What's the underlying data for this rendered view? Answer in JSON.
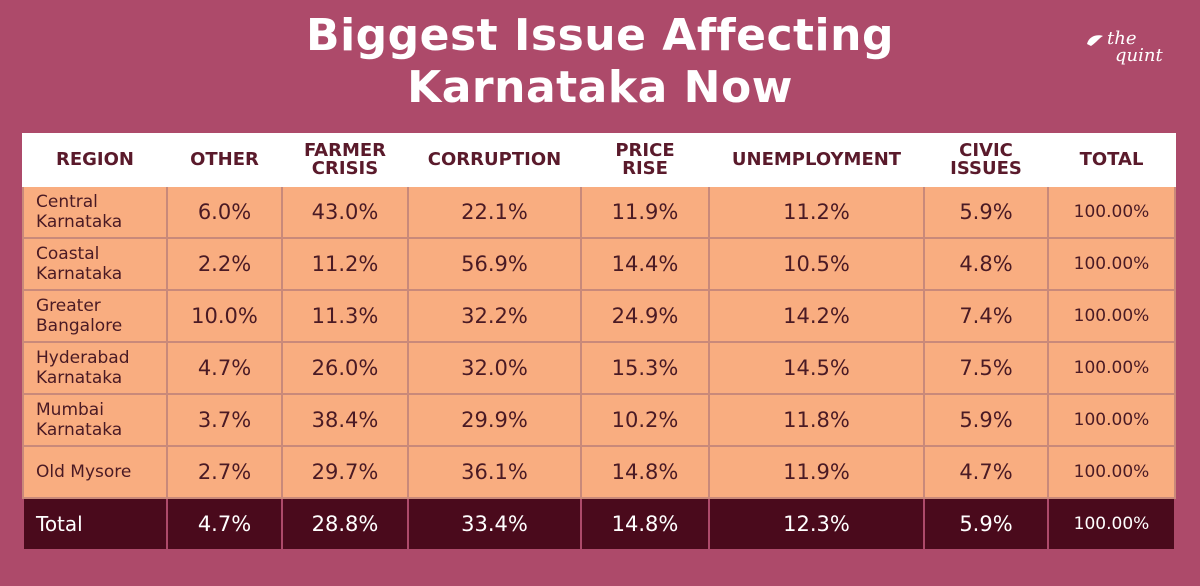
{
  "title": {
    "line1": "Biggest Issue Affecting",
    "line2": "Karnataka Now"
  },
  "logo": {
    "line1": "the",
    "line2": "quint"
  },
  "chart_data": {
    "type": "table",
    "title": "Biggest Issue Affecting Karnataka Now",
    "columns": [
      "REGION",
      "OTHER",
      "FARMER CRISIS",
      "CORRUPTION",
      "PRICE RISE",
      "UNEMPLOYMENT",
      "CIVIC ISSUES",
      "TOTAL"
    ],
    "rows": [
      [
        "Central Karnataka",
        "6.0%",
        "43.0%",
        "22.1%",
        "11.9%",
        "11.2%",
        "5.9%",
        "100.00%"
      ],
      [
        "Coastal Karnataka",
        "2.2%",
        "11.2%",
        "56.9%",
        "14.4%",
        "10.5%",
        "4.8%",
        "100.00%"
      ],
      [
        "Greater Bangalore",
        "10.0%",
        "11.3%",
        "32.2%",
        "24.9%",
        "14.2%",
        "7.4%",
        "100.00%"
      ],
      [
        "Hyderabad Karnataka",
        "4.7%",
        "26.0%",
        "32.0%",
        "15.3%",
        "14.5%",
        "7.5%",
        "100.00%"
      ],
      [
        "Mumbai Karnataka",
        "3.7%",
        "38.4%",
        "29.9%",
        "10.2%",
        "11.8%",
        "5.9%",
        "100.00%"
      ],
      [
        "Old Mysore",
        "2.7%",
        "29.7%",
        "36.1%",
        "14.8%",
        "11.9%",
        "4.7%",
        "100.00%"
      ]
    ],
    "total_row": [
      "Total",
      "4.7%",
      "28.8%",
      "33.4%",
      "14.8%",
      "12.3%",
      "5.9%",
      "100.00%"
    ]
  }
}
